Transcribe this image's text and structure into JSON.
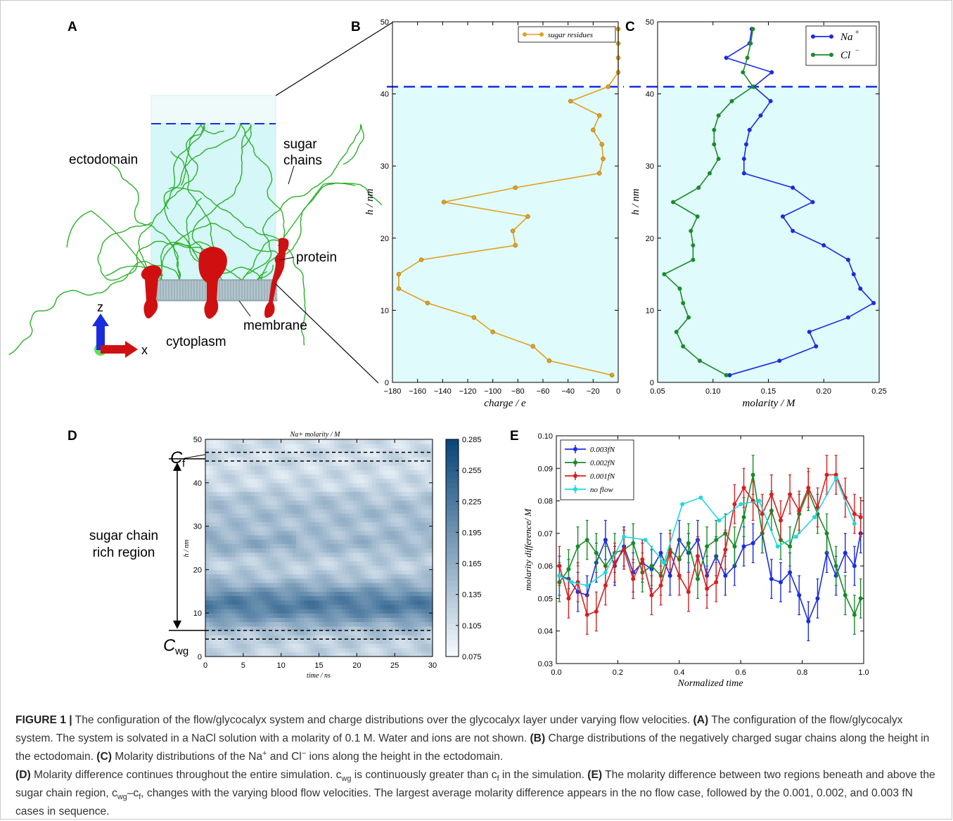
{
  "panels": {
    "a": "A",
    "b": "B",
    "c": "C",
    "d": "D",
    "e": "E"
  },
  "panel_a": {
    "labels": {
      "ectodomain": "ectodomain",
      "sugar_chains_1": "sugar",
      "sugar_chains_2": "chains",
      "protein": "protein",
      "membrane": "membrane",
      "cytoplasm": "cytoplasm",
      "axis_z": "z",
      "axis_x": "x"
    }
  },
  "chart_b": {
    "type": "line",
    "xlabel": "charge / e",
    "ylabel": "h / nm",
    "xlim": [
      -180,
      0
    ],
    "ylim": [
      0,
      50
    ],
    "xticks": [
      "-180",
      "-160",
      "-140",
      "-120",
      "-100",
      "-80",
      "-60",
      "-40",
      "-20",
      "0"
    ],
    "yticks": [
      "0",
      "10",
      "20",
      "30",
      "40",
      "50"
    ],
    "legend": "sugar residues",
    "dashed_line_h": 41,
    "colors": {
      "line": "#e0a020",
      "fill": "#e0fbfb",
      "dashed": "#1a2ce0"
    },
    "series": [
      {
        "name": "sugar residues",
        "x": [
          -5,
          -55,
          -68,
          -100,
          -115,
          -152,
          -175,
          -175,
          -157,
          -82,
          -84,
          -72,
          -139,
          -82,
          -15,
          -12,
          -13,
          -20,
          -15,
          -38,
          -8,
          0,
          0,
          0,
          0
        ],
        "y": [
          1,
          3,
          5,
          7,
          9,
          11,
          13,
          15,
          17,
          19,
          21,
          23,
          25,
          27,
          29,
          31,
          33,
          35,
          37,
          39,
          41,
          43,
          45,
          47,
          49
        ]
      }
    ]
  },
  "chart_c": {
    "type": "line",
    "xlabel": "molarity / M",
    "ylabel": "h / nm",
    "xlim": [
      0.05,
      0.25
    ],
    "ylim": [
      0,
      50
    ],
    "xticks": [
      "0.05",
      "0.10",
      "0.15",
      "0.20",
      "0.25"
    ],
    "yticks": [
      "0",
      "10",
      "20",
      "30",
      "40",
      "50"
    ],
    "dashed_line_h": 41,
    "colors": {
      "fill": "#e0fbfb",
      "dashed": "#1a2ce0"
    },
    "series": [
      {
        "name": "Na+",
        "label": "Na",
        "sup": "+",
        "color": "#1a2ce0",
        "x": [
          0.115,
          0.16,
          0.193,
          0.187,
          0.222,
          0.245,
          0.233,
          0.227,
          0.222,
          0.2,
          0.172,
          0.163,
          0.19,
          0.172,
          0.128,
          0.128,
          0.13,
          0.133,
          0.143,
          0.152,
          0.137,
          0.153,
          0.112,
          0.133,
          0.135
        ],
        "y": [
          1,
          3,
          5,
          7,
          9,
          11,
          13,
          15,
          17,
          19,
          21,
          23,
          25,
          27,
          29,
          31,
          33,
          35,
          37,
          39,
          41,
          43,
          45,
          47,
          49
        ]
      },
      {
        "name": "Cl-",
        "label": "Cl",
        "sup": "−",
        "color": "#1a8a2a",
        "x": [
          0.112,
          0.088,
          0.073,
          0.067,
          0.078,
          0.073,
          0.07,
          0.056,
          0.082,
          0.082,
          0.08,
          0.086,
          0.064,
          0.087,
          0.097,
          0.105,
          0.101,
          0.101,
          0.105,
          0.117,
          0.136,
          0.127,
          0.131,
          0.134,
          0.136
        ],
        "y": [
          1,
          3,
          5,
          7,
          9,
          11,
          13,
          15,
          17,
          19,
          21,
          23,
          25,
          27,
          29,
          31,
          33,
          35,
          37,
          39,
          41,
          43,
          45,
          47,
          49
        ]
      }
    ]
  },
  "chart_d": {
    "type": "heatmap",
    "title": "Na+ molarity / M",
    "xlabel": "time / ns",
    "ylabel": "h / nm",
    "xlim": [
      0,
      30
    ],
    "ylim": [
      0,
      50
    ],
    "xticks": [
      "0",
      "5",
      "10",
      "15",
      "20",
      "25",
      "30"
    ],
    "yticks": [
      "0",
      "10",
      "20",
      "30",
      "40",
      "50"
    ],
    "colorbar_ticks": [
      "0.285",
      "0.255",
      "0.225",
      "0.195",
      "0.165",
      "0.135",
      "0.105",
      "0.075"
    ],
    "colorbar_range": [
      0.075,
      0.285
    ],
    "annot_cf": "C",
    "annot_cf_sub": "f",
    "annot_cwg": "C",
    "annot_cwg_sub": "wg",
    "region_text_1": "sugar chain",
    "region_text_2": "rich region",
    "band_cf": [
      45,
      47
    ],
    "band_cwg": [
      4,
      6
    ]
  },
  "chart_e": {
    "type": "line",
    "xlabel": "Normalized time",
    "ylabel": "molarity difference/ M",
    "xlim": [
      0,
      1
    ],
    "ylim": [
      0.03,
      0.1
    ],
    "xticks": [
      "0.0",
      "0.2",
      "0.4",
      "0.6",
      "0.8",
      "1.0"
    ],
    "yticks": [
      "0.03",
      "0.04",
      "0.05",
      "0.06",
      "0.07",
      "0.08",
      "0.09",
      "0.10"
    ],
    "legend": [
      "0.003fN",
      "0.002fN",
      "0.001fN",
      "no flow"
    ],
    "series": [
      {
        "name": "0.003fN",
        "color": "#1a2ce0",
        "err": 0.006,
        "x": [
          0.01,
          0.04,
          0.07,
          0.1,
          0.13,
          0.16,
          0.19,
          0.22,
          0.25,
          0.28,
          0.31,
          0.34,
          0.37,
          0.4,
          0.43,
          0.46,
          0.49,
          0.52,
          0.55,
          0.58,
          0.61,
          0.64,
          0.67,
          0.7,
          0.73,
          0.76,
          0.79,
          0.82,
          0.85,
          0.88,
          0.91,
          0.94,
          0.97,
          0.99
        ],
        "y": [
          0.057,
          0.056,
          0.052,
          0.051,
          0.061,
          0.068,
          0.06,
          0.066,
          0.058,
          0.061,
          0.059,
          0.064,
          0.057,
          0.068,
          0.064,
          0.068,
          0.057,
          0.063,
          0.057,
          0.06,
          0.066,
          0.067,
          0.07,
          0.056,
          0.055,
          0.058,
          0.051,
          0.043,
          0.05,
          0.064,
          0.057,
          0.064,
          0.06,
          0.07
        ]
      },
      {
        "name": "0.002fN",
        "color": "#1a8a2a",
        "err": 0.006,
        "x": [
          0.01,
          0.04,
          0.07,
          0.1,
          0.13,
          0.16,
          0.19,
          0.22,
          0.25,
          0.28,
          0.31,
          0.34,
          0.37,
          0.4,
          0.43,
          0.46,
          0.49,
          0.52,
          0.55,
          0.58,
          0.61,
          0.64,
          0.67,
          0.7,
          0.73,
          0.76,
          0.79,
          0.82,
          0.85,
          0.88,
          0.91,
          0.94,
          0.97,
          0.99
        ],
        "y": [
          0.055,
          0.059,
          0.066,
          0.068,
          0.064,
          0.06,
          0.064,
          0.065,
          0.067,
          0.058,
          0.06,
          0.057,
          0.065,
          0.062,
          0.067,
          0.056,
          0.066,
          0.068,
          0.07,
          0.066,
          0.075,
          0.088,
          0.07,
          0.077,
          0.068,
          0.066,
          0.076,
          0.083,
          0.076,
          0.07,
          0.06,
          0.051,
          0.045,
          0.05
        ]
      },
      {
        "name": "0.001fN",
        "color": "#d42020",
        "err": 0.006,
        "x": [
          0.01,
          0.04,
          0.07,
          0.1,
          0.13,
          0.16,
          0.19,
          0.22,
          0.25,
          0.28,
          0.31,
          0.34,
          0.37,
          0.4,
          0.43,
          0.46,
          0.49,
          0.52,
          0.55,
          0.58,
          0.61,
          0.64,
          0.67,
          0.7,
          0.73,
          0.76,
          0.79,
          0.82,
          0.85,
          0.88,
          0.91,
          0.94,
          0.97,
          0.99
        ],
        "y": [
          0.06,
          0.05,
          0.055,
          0.045,
          0.046,
          0.054,
          0.061,
          0.065,
          0.056,
          0.062,
          0.051,
          0.054,
          0.064,
          0.057,
          0.052,
          0.063,
          0.053,
          0.055,
          0.065,
          0.079,
          0.084,
          0.08,
          0.076,
          0.082,
          0.074,
          0.082,
          0.077,
          0.084,
          0.078,
          0.088,
          0.088,
          0.081,
          0.076,
          0.075
        ]
      },
      {
        "name": "no flow",
        "color": "#20d8e0",
        "err": 0,
        "x": [
          0.01,
          0.05,
          0.1,
          0.16,
          0.22,
          0.29,
          0.35,
          0.41,
          0.47,
          0.53,
          0.6,
          0.66,
          0.72,
          0.78,
          0.84,
          0.91,
          0.97
        ],
        "y": [
          0.057,
          0.055,
          0.054,
          0.058,
          0.069,
          0.068,
          0.061,
          0.079,
          0.081,
          0.074,
          0.079,
          0.08,
          0.066,
          0.069,
          0.075,
          0.087,
          0.073
        ]
      }
    ]
  },
  "caption": {
    "fig_label": "FIGURE 1 |",
    "intro": " The configuration of the flow/glycocalyx system and charge distributions over the glycocalyx layer under varying flow velocities. ",
    "a_label": "(A)",
    "a_text": " The configuration of the flow/glycocalyx system. The system is solvated in a NaCl solution with a molarity of 0.1 M. Water and ions are not shown. ",
    "b_label": "(B)",
    "b_text": " Charge distributions of the negatively charged sugar chains along the height in the ectodomain. ",
    "c_label": "(C)",
    "c_text_1": " Molarity distributions of the Na",
    "c_sup_1": "+",
    "c_text_2": " and Cl",
    "c_sup_2": "−",
    "c_text_3": " ions along the height in the ectodomain.",
    "d_label": "(D)",
    "d_text_1": " Molarity difference continues throughout the entire simulation. c",
    "d_sub_1": "wg",
    "d_text_2": " is continuously greater than c",
    "d_sub_2": "f",
    "d_text_3": " in the simulation. ",
    "e_label": "(E)",
    "e_text_1": " The molarity difference between two regions beneath and above the sugar chain region, c",
    "e_sub_1": "wg",
    "e_text_2": "–c",
    "e_sub_2": "f",
    "e_text_3": ", changes with the varying blood flow velocities. The largest average molarity difference appears in the no flow case, followed by the 0.001, 0.002, and 0.003 fN cases in sequence."
  }
}
